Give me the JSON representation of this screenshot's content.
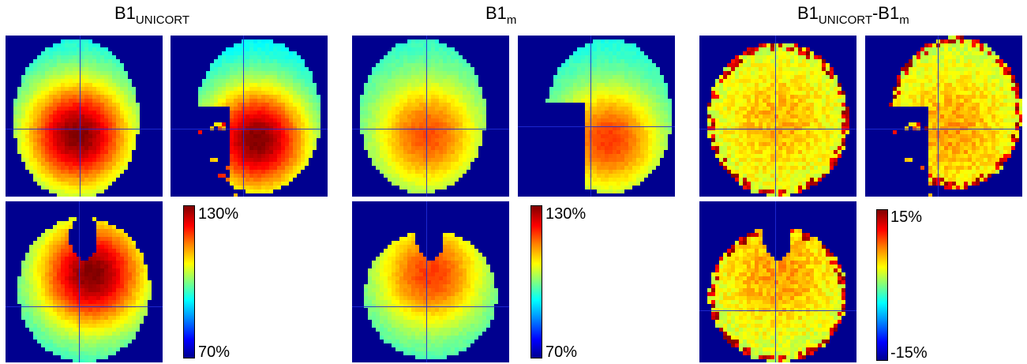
{
  "titles": {
    "g1": {
      "main": "B1",
      "sub": "UNICORT"
    },
    "g2": {
      "main": "B1",
      "sub": "m"
    },
    "g3": {
      "main": "B1",
      "sub1": "UNICORT",
      "dash": "-B1",
      "sub2": "m"
    }
  },
  "colorbars": {
    "g1": {
      "max": "130%",
      "min": "70%"
    },
    "g2": {
      "max": "130%",
      "min": "70%"
    },
    "g3": {
      "max": "15%",
      "min": "-15%"
    }
  },
  "colors": {
    "background": "#00008f",
    "crosshair": "#1f2bd6"
  }
}
